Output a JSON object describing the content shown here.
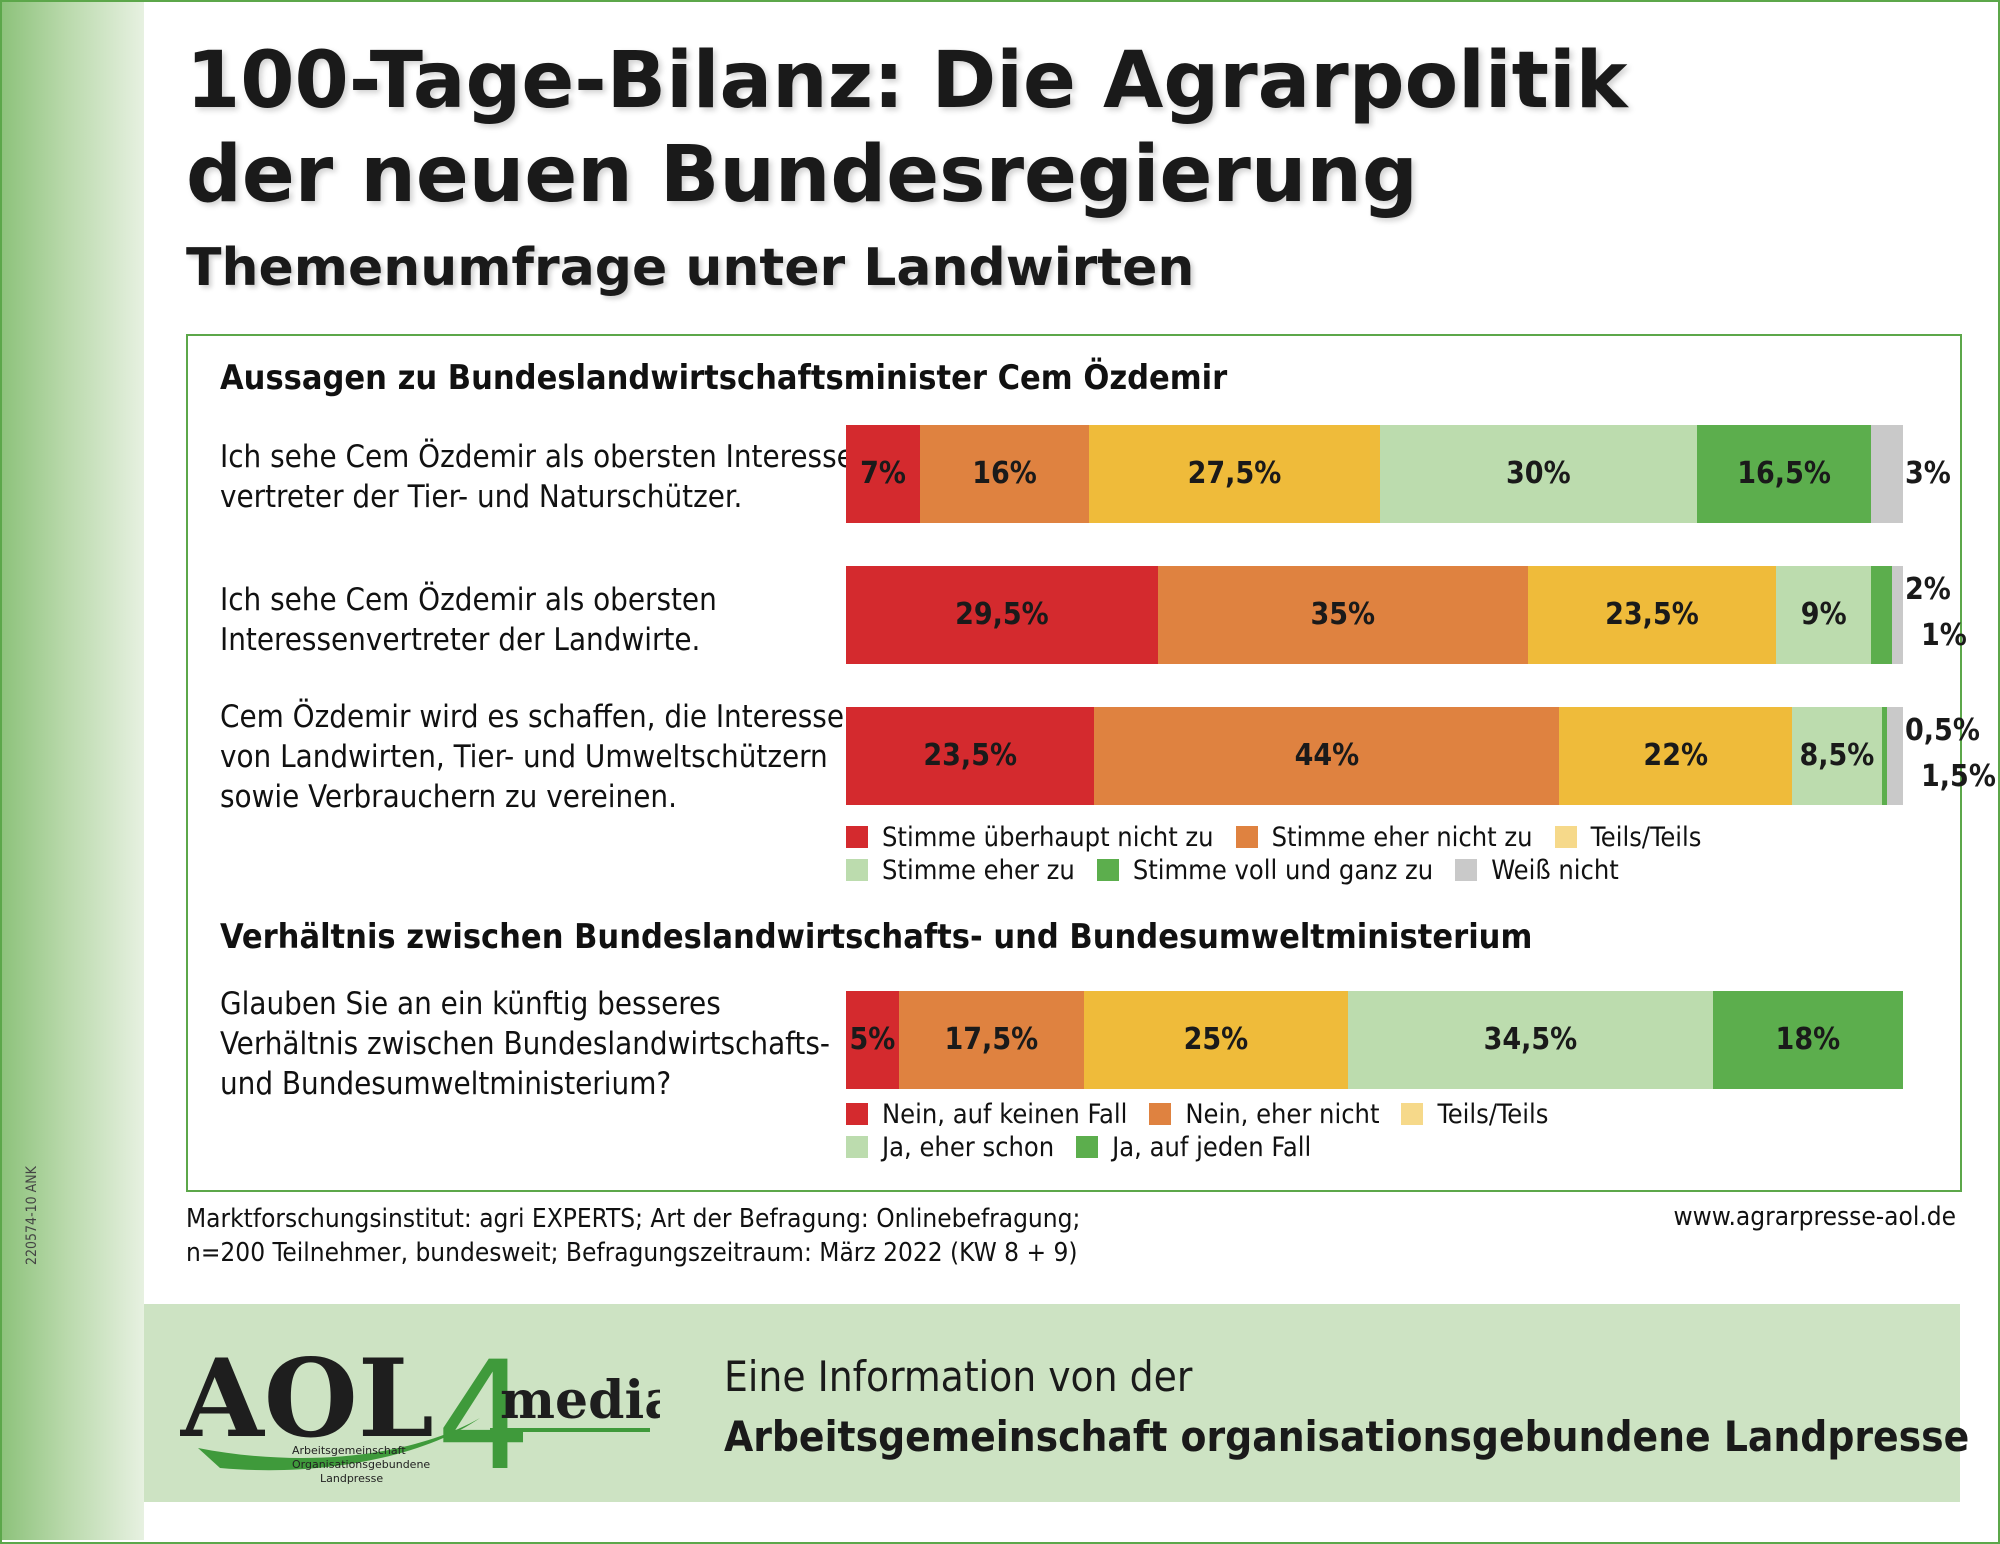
{
  "title_line1": "100-Tage-Bilanz: Die Agrarpolitik",
  "title_line2": "der neuen Bundesregierung",
  "subtitle": "Themenumfrage unter Landwirten",
  "side_code": "220574-10 ANK",
  "colors": {
    "dark_red": "#d42a2e",
    "orange": "#df8240",
    "yellow": "#efbb3a",
    "light_green": "#bcdcae",
    "green": "#5cae4d",
    "gray": "#c9c9c9",
    "light_yellow": "#f6d98a",
    "frame_green": "#5ca74a"
  },
  "chart_data": [
    {
      "type": "bar",
      "orientation": "horizontal-stacked-100",
      "title": "Aussagen zu Bundeslandwirtschaftsminister Cem Özdemir",
      "categories": [
        "Ich sehe Cem Özdemir als obersten Interessen-\nvertreter der Tier- und Naturschützer.",
        "Ich sehe Cem Özdemir als obersten\nInteressenvertreter der Landwirte.",
        "Cem Özdemir wird es schaffen, die Interessen\nvon Landwirten, Tier- und Umweltschützern\nsowie Verbrauchern zu vereinen."
      ],
      "series": [
        {
          "name": "Stimme überhaupt nicht zu",
          "color": "#d42a2e",
          "values": [
            7,
            29.5,
            23.5
          ],
          "labels": [
            "7%",
            "29,5%",
            "23,5%"
          ]
        },
        {
          "name": "Stimme eher nicht zu",
          "color": "#df8240",
          "values": [
            16,
            35,
            44
          ],
          "labels": [
            "16%",
            "35%",
            "44%"
          ]
        },
        {
          "name": "Teils/Teils",
          "color": "#efbb3a",
          "values": [
            27.5,
            23.5,
            22
          ],
          "labels": [
            "27,5%",
            "23,5%",
            "22%"
          ]
        },
        {
          "name": "Stimme eher zu",
          "color": "#bcdcae",
          "values": [
            30,
            9,
            8.5
          ],
          "labels": [
            "30%",
            "9%",
            "8,5%"
          ]
        },
        {
          "name": "Stimme voll und ganz zu",
          "color": "#5cae4d",
          "values": [
            16.5,
            2,
            0.5
          ],
          "labels": [
            "16,5%",
            "2%",
            "0,5%"
          ]
        },
        {
          "name": "Weiß nicht",
          "color": "#c9c9c9",
          "values": [
            3,
            1,
            1.5
          ],
          "labels": [
            "3%",
            "1%",
            "1,5%"
          ]
        }
      ],
      "legend_rows": [
        [
          0,
          1,
          2
        ],
        [
          3,
          4,
          5
        ]
      ],
      "legend_colors": [
        "#d42a2e",
        "#df8240",
        "#f6d98a",
        "#bcdcae",
        "#5cae4d",
        "#c9c9c9"
      ]
    },
    {
      "type": "bar",
      "orientation": "horizontal-stacked-100",
      "title": "Verhältnis zwischen Bundeslandwirtschafts- und Bundesumweltministerium",
      "categories": [
        "Glauben Sie an ein künftig besseres\nVerhältnis zwischen Bundeslandwirtschafts-\nund Bundesumweltministerium?"
      ],
      "series": [
        {
          "name": "Nein, auf keinen Fall",
          "color": "#d42a2e",
          "values": [
            5
          ],
          "labels": [
            "5%"
          ]
        },
        {
          "name": "Nein, eher nicht",
          "color": "#df8240",
          "values": [
            17.5
          ],
          "labels": [
            "17,5%"
          ]
        },
        {
          "name": "Teils/Teils",
          "color": "#efbb3a",
          "values": [
            25
          ],
          "labels": [
            "25%"
          ]
        },
        {
          "name": "Ja, eher schon",
          "color": "#bcdcae",
          "values": [
            34.5
          ],
          "labels": [
            "34,5%"
          ]
        },
        {
          "name": "Ja, auf jeden Fall",
          "color": "#5cae4d",
          "values": [
            18
          ],
          "labels": [
            "18%"
          ]
        }
      ],
      "legend_rows": [
        [
          0,
          1,
          2
        ],
        [
          3,
          4
        ]
      ],
      "legend_colors": [
        "#d42a2e",
        "#df8240",
        "#f6d98a",
        "#bcdcae",
        "#5cae4d"
      ]
    }
  ],
  "source_line1": "Marktforschungsinstitut: agri EXPERTS; Art der Befragung: Onlinebefragung;",
  "source_line2": "n=200 Teilnehmer, bundesweit; Befragungszeitraum: März 2022 (KW 8 + 9)",
  "website": "www.agrarpresse-aol.de",
  "footer_line1": "Eine Information von der",
  "footer_line2": "Arbeitsgemeinschaft organisationsgebundene Landpresse",
  "logo": {
    "main": "AOL",
    "digit": "4",
    "word": "media",
    "tag1": "Arbeitsgemeinschaft",
    "tag2": "Organisationsgebundene",
    "tag3": "Landpresse"
  }
}
